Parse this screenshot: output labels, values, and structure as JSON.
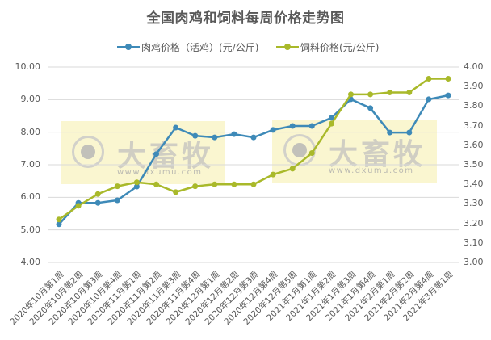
{
  "chart_data": {
    "type": "line",
    "title": "全国肉鸡和饲料每周价格走势图",
    "xlabel": "",
    "ylabel": "",
    "y2label": "",
    "ylim": [
      4.0,
      10.0
    ],
    "y2lim": [
      3.0,
      4.0
    ],
    "yticks": [
      "10.00",
      "9.00",
      "8.00",
      "7.00",
      "6.00",
      "5.00",
      "4.00"
    ],
    "y2ticks": [
      "4.00",
      "3.90",
      "3.80",
      "3.70",
      "3.60",
      "3.50",
      "3.40",
      "3.30",
      "3.20",
      "3.10",
      "3.00"
    ],
    "grid": true,
    "legend_position": "top",
    "categories": [
      "2020年10月第1周",
      "2020年10月第2周",
      "2020年10月第3周",
      "2020年10月第4周",
      "2020年11月第1周",
      "2020年11月第2周",
      "2020年11月第3周",
      "2020年11月第4周",
      "2020年12月第1周",
      "2020年12月第2周",
      "2020年12月第3周",
      "2020年12月第4周",
      "2020年12月第5周",
      "2021年1月第1周",
      "2021年1月第2周",
      "2021年1月第3周",
      "2021年1月第4周",
      "2021年2月第1周",
      "2021年2月第2周",
      "2021年2月第4周",
      "2021年3月第1周"
    ],
    "series": [
      {
        "name": "肉鸡价格（活鸡）(元/公斤)",
        "axis": "left",
        "color": "#3E8AB8",
        "values": [
          5.17,
          5.83,
          5.83,
          5.91,
          6.33,
          7.33,
          8.14,
          7.89,
          7.84,
          7.94,
          7.84,
          8.07,
          8.19,
          8.19,
          8.44,
          9.01,
          8.74,
          7.99,
          7.99,
          9.01,
          9.13
        ]
      },
      {
        "name": "饲料价格(元/公斤)",
        "axis": "right",
        "color": "#A9B92A",
        "values": [
          3.22,
          3.29,
          3.35,
          3.39,
          3.41,
          3.4,
          3.36,
          3.39,
          3.4,
          3.4,
          3.4,
          3.45,
          3.48,
          3.56,
          3.71,
          3.86,
          3.86,
          3.87,
          3.87,
          3.94,
          3.94
        ]
      }
    ]
  },
  "watermark": {
    "brand": "大畜牧",
    "url": "www.dxumu.com"
  }
}
